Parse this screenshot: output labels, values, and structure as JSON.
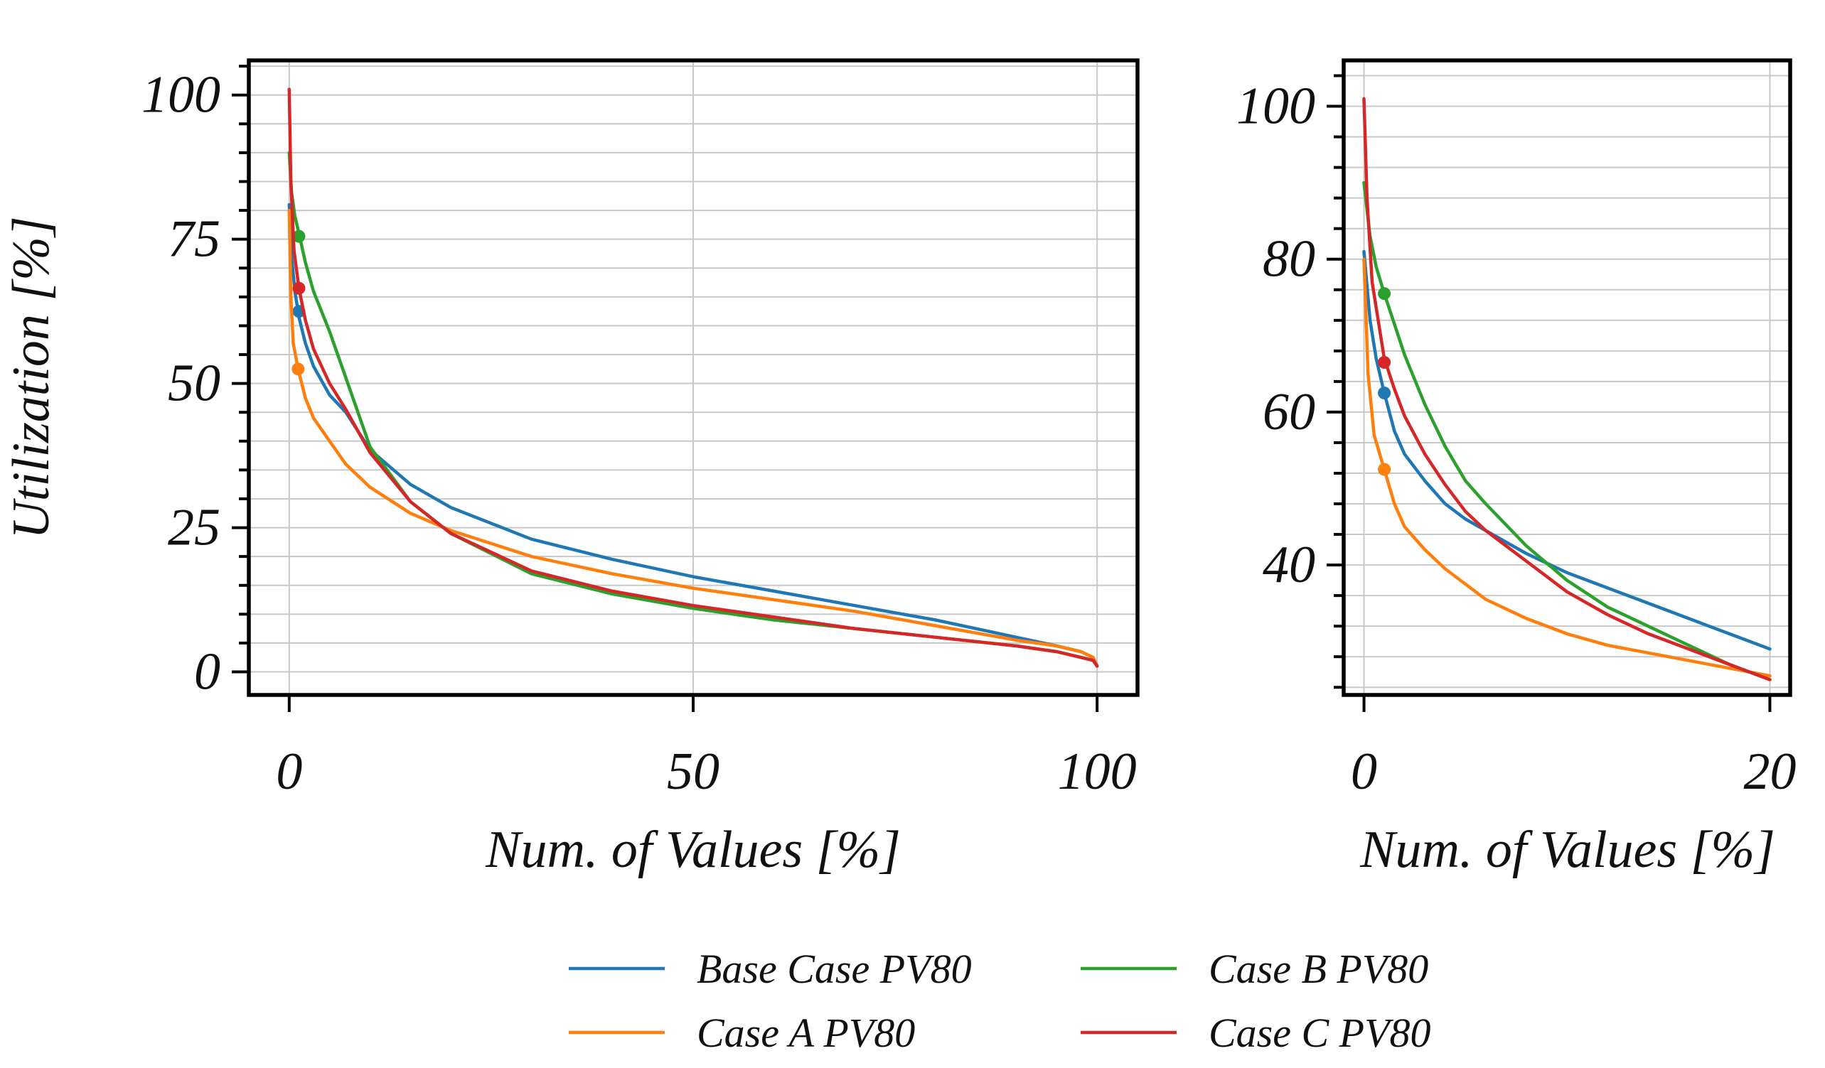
{
  "chart_data": [
    {
      "type": "line",
      "panel": "full",
      "title": "",
      "xlabel": "Num. of Values [%]",
      "ylabel": "Utilization [%]",
      "xlim": [
        -5,
        105
      ],
      "ylim": [
        -4,
        106
      ],
      "xticks": [
        0,
        50,
        100
      ],
      "yticks": [
        0,
        25,
        50,
        75,
        100
      ],
      "grid": true,
      "series": [
        {
          "name": "Base Case PV80",
          "color": "#1f77b4",
          "x": [
            0,
            0.3,
            0.7,
            1.2,
            2,
            3,
            5,
            7,
            10,
            15,
            20,
            30,
            40,
            50,
            60,
            70,
            80,
            90,
            95,
            98,
            99.5,
            100
          ],
          "y": [
            81,
            72,
            66,
            61.5,
            57,
            53,
            48,
            45,
            38.5,
            32.5,
            28.5,
            23,
            19.5,
            16.5,
            14,
            11.5,
            9,
            6,
            4.5,
            3.5,
            2.5,
            1
          ],
          "marker": {
            "x": 1.2,
            "y": 62.5
          }
        },
        {
          "name": "Case A PV80",
          "color": "#ff7f0e",
          "x": [
            0,
            0.2,
            0.5,
            1.1,
            2,
            3,
            5,
            7,
            10,
            15,
            20,
            30,
            40,
            50,
            60,
            70,
            80,
            90,
            95,
            98,
            99.5,
            100
          ],
          "y": [
            80,
            65,
            57,
            52.5,
            47.5,
            44,
            40,
            36,
            32,
            27.5,
            24.5,
            20,
            17,
            14.5,
            12.5,
            10.5,
            8,
            5.5,
            4.5,
            3.5,
            2.5,
            1
          ],
          "marker": {
            "x": 1.1,
            "y": 52.5
          }
        },
        {
          "name": "Case B PV80",
          "color": "#2ca02c",
          "x": [
            0,
            0.3,
            0.7,
            1.2,
            2,
            3,
            5,
            7,
            10,
            15,
            20,
            30,
            40,
            50,
            60,
            70,
            80,
            90,
            95,
            98,
            99.5,
            100
          ],
          "y": [
            90,
            83,
            79,
            76,
            71,
            66,
            59,
            51,
            39,
            29.5,
            24,
            17,
            13.5,
            11,
            9,
            7.5,
            6,
            4.5,
            3.5,
            2.5,
            2,
            1
          ],
          "marker": {
            "x": 1.2,
            "y": 75.5
          }
        },
        {
          "name": "Case C PV80",
          "color": "#d62728",
          "x": [
            0,
            0.2,
            0.6,
            1.2,
            2,
            3,
            5,
            7,
            10,
            15,
            20,
            30,
            40,
            50,
            60,
            70,
            80,
            90,
            95,
            98,
            99.5,
            100
          ],
          "y": [
            101,
            85,
            73,
            66.5,
            61,
            56,
            50,
            45.5,
            38,
            29.5,
            24,
            17.5,
            14,
            11.5,
            9.5,
            7.5,
            6,
            4.5,
            3.5,
            2.5,
            2,
            1
          ],
          "marker": {
            "x": 1.2,
            "y": 66.5
          }
        }
      ]
    },
    {
      "type": "line",
      "panel": "zoom",
      "title": "",
      "xlabel": "Num. of Values [%]",
      "ylabel": "",
      "xlim": [
        -1,
        21
      ],
      "ylim": [
        23,
        106
      ],
      "xticks": [
        0,
        20
      ],
      "yticks": [
        40,
        60,
        80,
        100
      ],
      "grid": true,
      "series": [
        {
          "name": "Base Case PV80",
          "color": "#1f77b4",
          "x": [
            0,
            0.3,
            0.6,
            1,
            1.5,
            2,
            3,
            4,
            5,
            6,
            8,
            10,
            12,
            14,
            16,
            18,
            20
          ],
          "y": [
            81,
            72,
            67,
            62.5,
            57.5,
            54.5,
            51,
            48,
            46,
            44.5,
            41.5,
            39,
            37,
            35,
            33,
            31,
            29
          ],
          "marker": {
            "x": 1,
            "y": 62.5
          }
        },
        {
          "name": "Case A PV80",
          "color": "#ff7f0e",
          "x": [
            0,
            0.2,
            0.5,
            1,
            1.5,
            2,
            3,
            4,
            5,
            6,
            8,
            10,
            12,
            14,
            16,
            18,
            20
          ],
          "y": [
            80,
            65,
            57,
            52.5,
            48,
            45,
            42,
            39.5,
            37.5,
            35.5,
            33,
            31,
            29.5,
            28.5,
            27.5,
            26.5,
            25.5
          ],
          "marker": {
            "x": 1,
            "y": 52.5
          }
        },
        {
          "name": "Case B PV80",
          "color": "#2ca02c",
          "x": [
            0,
            0.3,
            0.6,
            1,
            1.5,
            2,
            3,
            4,
            5,
            6,
            8,
            10,
            12,
            14,
            16,
            18,
            20
          ],
          "y": [
            90,
            83,
            79,
            75.5,
            71.5,
            67.5,
            61,
            55.5,
            51,
            48,
            42.5,
            38,
            34.5,
            32,
            29.5,
            27,
            25
          ],
          "marker": {
            "x": 1,
            "y": 75.5
          }
        },
        {
          "name": "Case C PV80",
          "color": "#d62728",
          "x": [
            0,
            0.15,
            0.4,
            1,
            1.5,
            2,
            3,
            4,
            5,
            6,
            8,
            10,
            12,
            14,
            16,
            18,
            20
          ],
          "y": [
            101,
            88,
            77,
            67,
            63,
            59.5,
            54.5,
            50.5,
            47,
            44.5,
            40.5,
            36.5,
            33.5,
            31,
            29,
            27,
            25
          ],
          "marker": {
            "x": 1,
            "y": 66.5
          }
        }
      ]
    }
  ],
  "legend": {
    "placement": "bottom-center",
    "entries": [
      {
        "label": "Base Case PV80",
        "color": "#1f77b4"
      },
      {
        "label": "Case B PV80",
        "color": "#2ca02c"
      },
      {
        "label": "Case A PV80",
        "color": "#ff7f0e"
      },
      {
        "label": "Case C PV80",
        "color": "#d62728"
      }
    ]
  }
}
